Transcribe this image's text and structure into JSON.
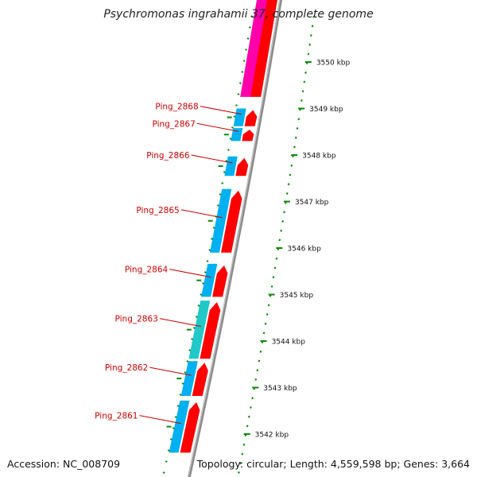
{
  "title": "Psychromonas ingrahamii 37, complete genome",
  "footer": {
    "accession": "Accession: NC_008709",
    "topology": "Topology: circular; Length: 4,559,598 bp; Genes: 3,664"
  },
  "colors": {
    "genome_line": "#8c8c8c",
    "cds_forward": "#ff0000",
    "cds_forward_other": "#ff00aa",
    "orf_blue": "#00b0f0",
    "orf_cyan": "#20c8c8",
    "tick_green": "#0a8a0a",
    "label_red": "#cc0000"
  },
  "scale_labels": [
    {
      "kbp": 3550,
      "text": "3550 kbp"
    },
    {
      "kbp": 3549,
      "text": "3549 kbp"
    },
    {
      "kbp": 3548,
      "text": "3548 kbp"
    },
    {
      "kbp": 3547,
      "text": "3547 kbp"
    },
    {
      "kbp": 3546,
      "text": "3546 kbp"
    },
    {
      "kbp": 3545,
      "text": "3545 kbp"
    },
    {
      "kbp": 3544,
      "text": "3544 kbp"
    },
    {
      "kbp": 3543,
      "text": "3543 kbp"
    },
    {
      "kbp": 3542,
      "text": "3542 kbp"
    }
  ],
  "genes": [
    {
      "id": "Ping_2868",
      "start_kbp": 3549.0,
      "end_kbp": 3548.62
    },
    {
      "id": "Ping_2867",
      "start_kbp": 3548.58,
      "end_kbp": 3548.3
    },
    {
      "id": "Ping_2866",
      "start_kbp": 3547.97,
      "end_kbp": 3547.55
    },
    {
      "id": "Ping_2865",
      "start_kbp": 3547.27,
      "end_kbp": 3545.9
    },
    {
      "id": "Ping_2864",
      "start_kbp": 3545.66,
      "end_kbp": 3544.95
    },
    {
      "id": "Ping_2863",
      "start_kbp": 3544.87,
      "end_kbp": 3543.62
    },
    {
      "id": "Ping_2862",
      "start_kbp": 3543.57,
      "end_kbp": 3542.82
    },
    {
      "id": "Ping_2861",
      "start_kbp": 3542.72,
      "end_kbp": 3541.6
    }
  ],
  "other_features": [
    {
      "name": "upstream-cds",
      "start_kbp": 3551.6,
      "end_kbp": 3549.25
    }
  ]
}
